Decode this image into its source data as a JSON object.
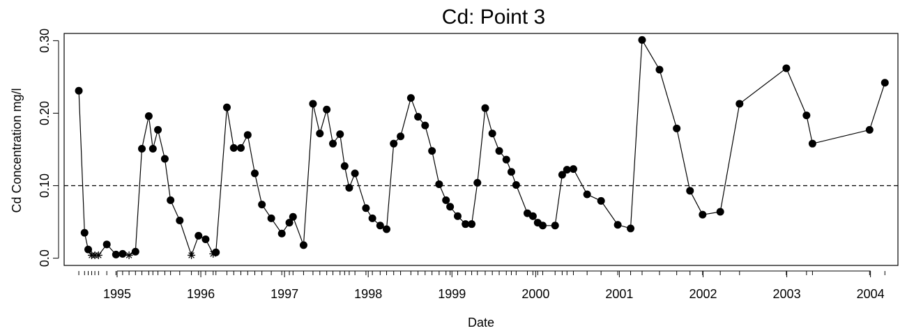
{
  "chart_data": {
    "type": "scatter",
    "title": "Cd:  Point 3",
    "xlabel": "Date",
    "ylabel": "Cd Concentration mg/l",
    "x_ticks": [
      "1995",
      "1996",
      "1997",
      "1998",
      "1999",
      "2000",
      "2001",
      "2002",
      "2003",
      "2004"
    ],
    "y_ticks": [
      "0.0",
      "0.10",
      "0.20",
      "0.30"
    ],
    "xlim": [
      "1994-05-15",
      "2004-04-30"
    ],
    "ylim": [
      -0.01,
      0.31
    ],
    "reference_line": {
      "y": 0.1,
      "style": "dashed"
    },
    "detected_marker": "filled-circle",
    "nondetect_marker": "asterisk",
    "series": [
      {
        "points": [
          [
            "1994-07-18",
            0.231
          ],
          [
            "1994-08-12",
            0.035
          ],
          [
            "1994-08-28",
            0.012
          ],
          [
            "1994-09-12",
            0.004
          ],
          [
            "1994-09-26",
            0.004
          ],
          [
            "1994-10-12",
            0.004
          ],
          [
            "1994-11-17",
            0.019
          ],
          [
            "1994-12-27",
            0.005
          ],
          [
            "1995-01-25",
            0.006
          ],
          [
            "1995-02-22",
            0.004
          ],
          [
            "1995-03-22",
            0.009
          ],
          [
            "1995-04-19",
            0.151
          ],
          [
            "1995-05-19",
            0.196
          ],
          [
            "1995-06-06",
            0.151
          ],
          [
            "1995-06-28",
            0.177
          ],
          [
            "1995-07-28",
            0.137
          ],
          [
            "1995-08-22",
            0.08
          ],
          [
            "1995-10-01",
            0.052
          ],
          [
            "1995-11-21",
            0.004
          ],
          [
            "1995-12-22",
            0.031
          ],
          [
            "1996-01-22",
            0.026
          ],
          [
            "1996-02-24",
            0.006
          ],
          [
            "1996-03-07",
            0.008
          ],
          [
            "1996-04-24",
            0.208
          ],
          [
            "1996-05-24",
            0.152
          ],
          [
            "1996-06-24",
            0.152
          ],
          [
            "1996-07-24",
            0.17
          ],
          [
            "1996-08-24",
            0.117
          ],
          [
            "1996-09-24",
            0.074
          ],
          [
            "1996-11-04",
            0.055
          ],
          [
            "1996-12-20",
            0.034
          ],
          [
            "1997-01-22",
            0.049
          ],
          [
            "1997-02-07",
            0.057
          ],
          [
            "1997-03-25",
            0.018
          ],
          [
            "1997-05-05",
            0.213
          ],
          [
            "1997-06-04",
            0.172
          ],
          [
            "1997-07-04",
            0.205
          ],
          [
            "1997-07-31",
            0.158
          ],
          [
            "1997-08-31",
            0.171
          ],
          [
            "1997-09-20",
            0.127
          ],
          [
            "1997-10-10",
            0.097
          ],
          [
            "1997-11-04",
            0.117
          ],
          [
            "1997-12-22",
            0.069
          ],
          [
            "1998-01-19",
            0.055
          ],
          [
            "1998-02-22",
            0.045
          ],
          [
            "1998-03-22",
            0.04
          ],
          [
            "1998-04-22",
            0.158
          ],
          [
            "1998-05-22",
            0.168
          ],
          [
            "1998-07-06",
            0.221
          ],
          [
            "1998-08-06",
            0.195
          ],
          [
            "1998-09-06",
            0.183
          ],
          [
            "1998-10-06",
            0.148
          ],
          [
            "1998-11-06",
            0.102
          ],
          [
            "1998-12-06",
            0.08
          ],
          [
            "1998-12-24",
            0.071
          ],
          [
            "1999-01-26",
            0.058
          ],
          [
            "1999-03-01",
            0.047
          ],
          [
            "1999-03-28",
            0.047
          ],
          [
            "1999-04-22",
            0.104
          ],
          [
            "1999-05-26",
            0.207
          ],
          [
            "1999-06-26",
            0.172
          ],
          [
            "1999-07-26",
            0.148
          ],
          [
            "1999-08-26",
            0.136
          ],
          [
            "1999-09-17",
            0.119
          ],
          [
            "1999-10-08",
            0.101
          ],
          [
            "1999-11-26",
            0.062
          ],
          [
            "1999-12-20",
            0.058
          ],
          [
            "2000-01-10",
            0.049
          ],
          [
            "2000-02-01",
            0.045
          ],
          [
            "2000-03-26",
            0.045
          ],
          [
            "2000-04-26",
            0.115
          ],
          [
            "2000-05-17",
            0.122
          ],
          [
            "2000-06-14",
            0.123
          ],
          [
            "2000-08-13",
            0.088
          ],
          [
            "2000-10-13",
            0.079
          ],
          [
            "2000-12-25",
            0.046
          ],
          [
            "2001-02-19",
            0.041
          ],
          [
            "2001-04-10",
            0.301
          ],
          [
            "2001-06-25",
            0.26
          ],
          [
            "2001-09-08",
            0.179
          ],
          [
            "2001-11-05",
            0.093
          ],
          [
            "2001-12-30",
            0.06
          ],
          [
            "2002-03-17",
            0.064
          ],
          [
            "2002-06-09",
            0.213
          ],
          [
            "2002-12-30",
            0.262
          ],
          [
            "2003-03-28",
            0.197
          ],
          [
            "2003-04-23",
            0.158
          ],
          [
            "2003-12-28",
            0.177
          ],
          [
            "2004-03-04",
            0.242
          ]
        ],
        "nondetects": [
          "1994-09-12",
          "1994-09-26",
          "1994-10-12",
          "1995-02-22",
          "1995-11-21",
          "1996-02-24"
        ]
      }
    ],
    "minor_x_ticks": [
      "1994-07-18",
      "1994-08-12",
      "1994-08-28",
      "1994-09-12",
      "1994-09-26",
      "1994-10-12",
      "1994-11-17",
      "1994-12-27",
      "1995-01-25",
      "1995-02-22",
      "1995-03-22",
      "1995-04-19",
      "1995-05-19",
      "1995-06-06",
      "1995-06-28",
      "1995-07-28",
      "1995-08-22",
      "1995-10-01",
      "1995-11-21",
      "1995-12-22",
      "1996-01-22",
      "1996-02-24",
      "1996-03-07",
      "1996-04-24",
      "1996-05-24",
      "1996-06-24",
      "1996-07-24",
      "1996-08-24",
      "1996-09-24",
      "1996-11-04",
      "1996-12-20",
      "1997-01-22",
      "1997-02-07",
      "1997-03-25",
      "1997-05-05",
      "1997-06-04",
      "1997-07-04",
      "1997-07-31",
      "1997-08-31",
      "1997-09-20",
      "1997-10-10",
      "1997-11-04",
      "1997-12-22",
      "1998-01-19",
      "1998-02-22",
      "1998-03-22",
      "1998-04-22",
      "1998-05-22",
      "1998-07-06",
      "1998-08-06",
      "1998-09-06",
      "1998-10-06",
      "1998-11-06",
      "1998-12-06",
      "1998-12-24",
      "1999-01-26",
      "1999-03-01",
      "1999-03-28",
      "1999-04-22",
      "1999-05-26",
      "1999-06-26",
      "1999-07-26",
      "1999-08-26",
      "1999-09-17",
      "1999-10-08",
      "1999-11-26",
      "1999-12-20",
      "2000-01-10",
      "2000-02-01",
      "2000-03-26",
      "2000-04-26",
      "2000-05-17",
      "2000-06-14",
      "2000-08-13",
      "2000-10-13",
      "2000-12-25",
      "2001-02-19",
      "2001-04-10",
      "2001-06-25",
      "2001-09-08",
      "2001-11-05",
      "2001-12-30",
      "2002-03-17",
      "2002-06-09",
      "2002-12-30",
      "2003-03-28",
      "2003-04-23",
      "2003-12-28",
      "2004-03-04"
    ],
    "grid": false,
    "legend": "none"
  }
}
